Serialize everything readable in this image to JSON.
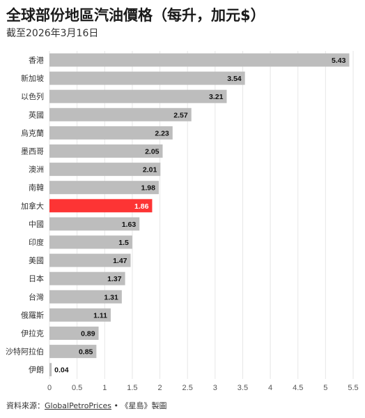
{
  "chart_data": {
    "type": "bar",
    "orientation": "horizontal",
    "title": "全球部份地區汽油價格（每升，加元$）",
    "subtitle": "截至2026年3月16日",
    "categories": [
      "香港",
      "新加坡",
      "以色列",
      "英國",
      "烏克蘭",
      "墨西哥",
      "澳洲",
      "南韓",
      "加拿大",
      "中國",
      "印度",
      "美國",
      "日本",
      "台灣",
      "俄羅斯",
      "伊拉克",
      "沙特阿拉伯",
      "伊朗"
    ],
    "values": [
      5.43,
      3.54,
      3.21,
      2.57,
      2.23,
      2.05,
      2.01,
      1.98,
      1.86,
      1.63,
      1.5,
      1.47,
      1.37,
      1.31,
      1.11,
      0.89,
      0.85,
      0.04
    ],
    "value_labels": [
      "5.43",
      "3.54",
      "3.21",
      "2.57",
      "2.23",
      "2.05",
      "2.01",
      "1.98",
      "1.86",
      "1.63",
      "1.5",
      "1.47",
      "1.37",
      "1.31",
      "1.11",
      "0.89",
      "0.85",
      "0.04"
    ],
    "highlight": "加拿大",
    "colors": {
      "bar": "#bdbdbd",
      "highlight": "#fd3434",
      "grid": "#e6e6e6"
    },
    "xlim": [
      0,
      5.5
    ],
    "xticks": [
      0,
      0.5,
      1,
      1.5,
      2,
      2.5,
      3,
      3.5,
      4,
      4.5,
      5,
      5.5
    ],
    "xtick_labels": [
      "0",
      "0.5",
      "1",
      "1.5",
      "2",
      "2.5",
      "3",
      "3.5",
      "4",
      "4.5",
      "5",
      "5.5"
    ],
    "grid": true
  },
  "source": {
    "prefix": "資料來源：",
    "link": "GlobalPetroPrices",
    "suffix": " • 《星島》製圖"
  }
}
